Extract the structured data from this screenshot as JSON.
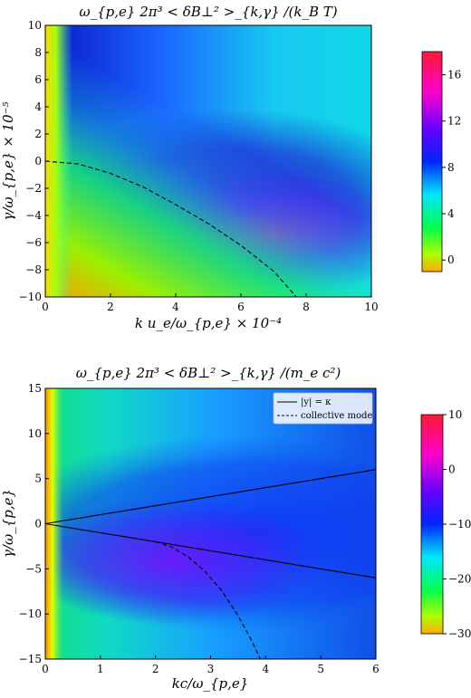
{
  "chart_data": [
    {
      "type": "heatmap",
      "title": "ω_{p,e} 2π³ < δB⊥² >_{k,γ} /(k_B T)",
      "xlabel": "k u_e/ω_{p,e} × 10⁻⁴",
      "ylabel": "γ/ω_{p,e} × 10⁻⁵",
      "xlim": [
        0,
        10
      ],
      "ylim": [
        -10,
        10
      ],
      "xticks": [
        "0",
        "2",
        "4",
        "6",
        "8",
        "10"
      ],
      "yticks": [
        "−10",
        "−8",
        "−6",
        "−4",
        "−2",
        "0",
        "2",
        "4",
        "6",
        "8",
        "10"
      ],
      "colorbar": {
        "range": [
          -1,
          18
        ],
        "ticks": [
          "0",
          "4",
          "8",
          "12",
          "16"
        ],
        "colormap": "gist_rainbow"
      },
      "grid": false,
      "curves": [
        {
          "style": "dashed",
          "color": "#000000",
          "points": [
            [
              0,
              0
            ],
            [
              1,
              -0.2
            ],
            [
              2,
              -0.9
            ],
            [
              3,
              -1.9
            ],
            [
              4,
              -3.2
            ],
            [
              5,
              -4.6
            ],
            [
              6,
              -6.2
            ],
            [
              7,
              -8.1
            ],
            [
              7.7,
              -10
            ]
          ]
        }
      ]
    },
    {
      "type": "heatmap",
      "title": "ω_{p,e} 2π³ < δB⊥² >_{k,γ} /(m_e c²)",
      "xlabel": "kc/ω_{p,e}",
      "ylabel": "γ/ω_{p,e}",
      "xlim": [
        0,
        6
      ],
      "ylim": [
        -15,
        15
      ],
      "xticks": [
        "0",
        "1",
        "2",
        "3",
        "4",
        "5",
        "6"
      ],
      "yticks": [
        "−15",
        "−10",
        "−5",
        "0",
        "5",
        "10",
        "15"
      ],
      "colorbar": {
        "range": [
          -30,
          10
        ],
        "ticks": [
          "−30",
          "−20",
          "−10",
          "0",
          "10"
        ],
        "colormap": "gist_rainbow"
      },
      "grid": false,
      "legend": {
        "position": "top-right",
        "entries": [
          {
            "label": "|y| = κ",
            "style": "solid"
          },
          {
            "label": "collective mode",
            "style": "dashed"
          }
        ]
      },
      "curves": [
        {
          "style": "solid",
          "color": "#000000",
          "points": [
            [
              0,
              0
            ],
            [
              6,
              6
            ]
          ]
        },
        {
          "style": "solid",
          "color": "#000000",
          "points": [
            [
              0,
              0
            ],
            [
              6,
              -6
            ]
          ]
        },
        {
          "style": "dashed",
          "color": "#000000",
          "points": [
            [
              2.0,
              -2.0
            ],
            [
              2.3,
              -2.6
            ],
            [
              2.6,
              -3.7
            ],
            [
              2.9,
              -5.3
            ],
            [
              3.2,
              -7.4
            ],
            [
              3.5,
              -10.2
            ],
            [
              3.75,
              -13.0
            ],
            [
              3.9,
              -15
            ]
          ]
        }
      ]
    }
  ]
}
